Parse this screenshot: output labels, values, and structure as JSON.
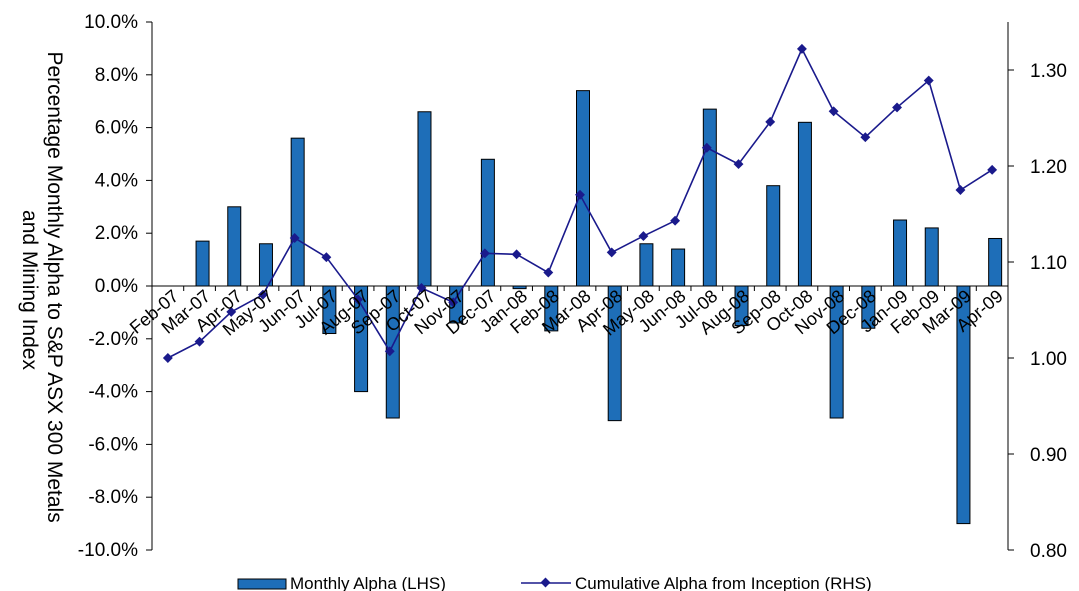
{
  "chart_data": {
    "type": "bar",
    "categories": [
      "Feb-07",
      "Mar-07",
      "Apr-07",
      "May-07",
      "Jun-07",
      "Jul-07",
      "Aug-07",
      "Sep-07",
      "Oct-07",
      "Nov-07",
      "Dec-07",
      "Jan-08",
      "Feb-08",
      "Mar-08",
      "Apr-08",
      "May-08",
      "Jun-08",
      "Jul-08",
      "Aug-08",
      "Sep-08",
      "Oct-08",
      "Nov-08",
      "Dec-08",
      "Jan-09",
      "Feb-09",
      "Mar-09",
      "Apr-09"
    ],
    "series": [
      {
        "name": "Monthly Alpha (LHS)",
        "type": "bar",
        "axis": "left",
        "color": "#1e6eb8",
        "values": [
          0.0,
          1.7,
          3.0,
          1.6,
          5.6,
          -1.8,
          -4.0,
          -5.0,
          6.6,
          -1.4,
          4.8,
          -0.1,
          -1.7,
          7.4,
          -5.1,
          1.6,
          1.4,
          6.7,
          -1.5,
          3.8,
          6.2,
          -5.0,
          -1.6,
          2.5,
          2.2,
          -9.0,
          1.8
        ]
      },
      {
        "name": "Cumulative Alpha from Inception (RHS)",
        "type": "line",
        "axis": "right",
        "color": "#1a1a8c",
        "values": [
          1.0,
          1.017,
          1.048,
          1.066,
          1.125,
          1.105,
          1.061,
          1.007,
          1.073,
          1.058,
          1.109,
          1.108,
          1.089,
          1.17,
          1.11,
          1.127,
          1.143,
          1.219,
          1.202,
          1.246,
          1.322,
          1.257,
          1.23,
          1.261,
          1.289,
          1.175,
          1.196
        ]
      }
    ],
    "left_axis": {
      "label": "Percentage Monthly Alpha to S&P ASX 300 Metals and Mining Index",
      "ylim": [
        -10,
        10
      ],
      "ticks": [
        10,
        8,
        6,
        4,
        2,
        0,
        -2,
        -4,
        -6,
        -8,
        -10
      ],
      "tick_labels": [
        "10.0%",
        "8.0%",
        "6.0%",
        "4.0%",
        "2.0%",
        "0.0%",
        "-2.0%",
        "-4.0%",
        "-6.0%",
        "-8.0%",
        "-10.0%"
      ]
    },
    "right_axis": {
      "ylim": [
        0.8,
        1.35
      ],
      "ticks": [
        1.3,
        1.2,
        1.1,
        1.0,
        0.9,
        0.8
      ],
      "tick_labels": [
        "1.30",
        "1.20",
        "1.10",
        "1.00",
        "0.90",
        "0.80"
      ]
    },
    "grid": false,
    "legend_position": "bottom"
  }
}
